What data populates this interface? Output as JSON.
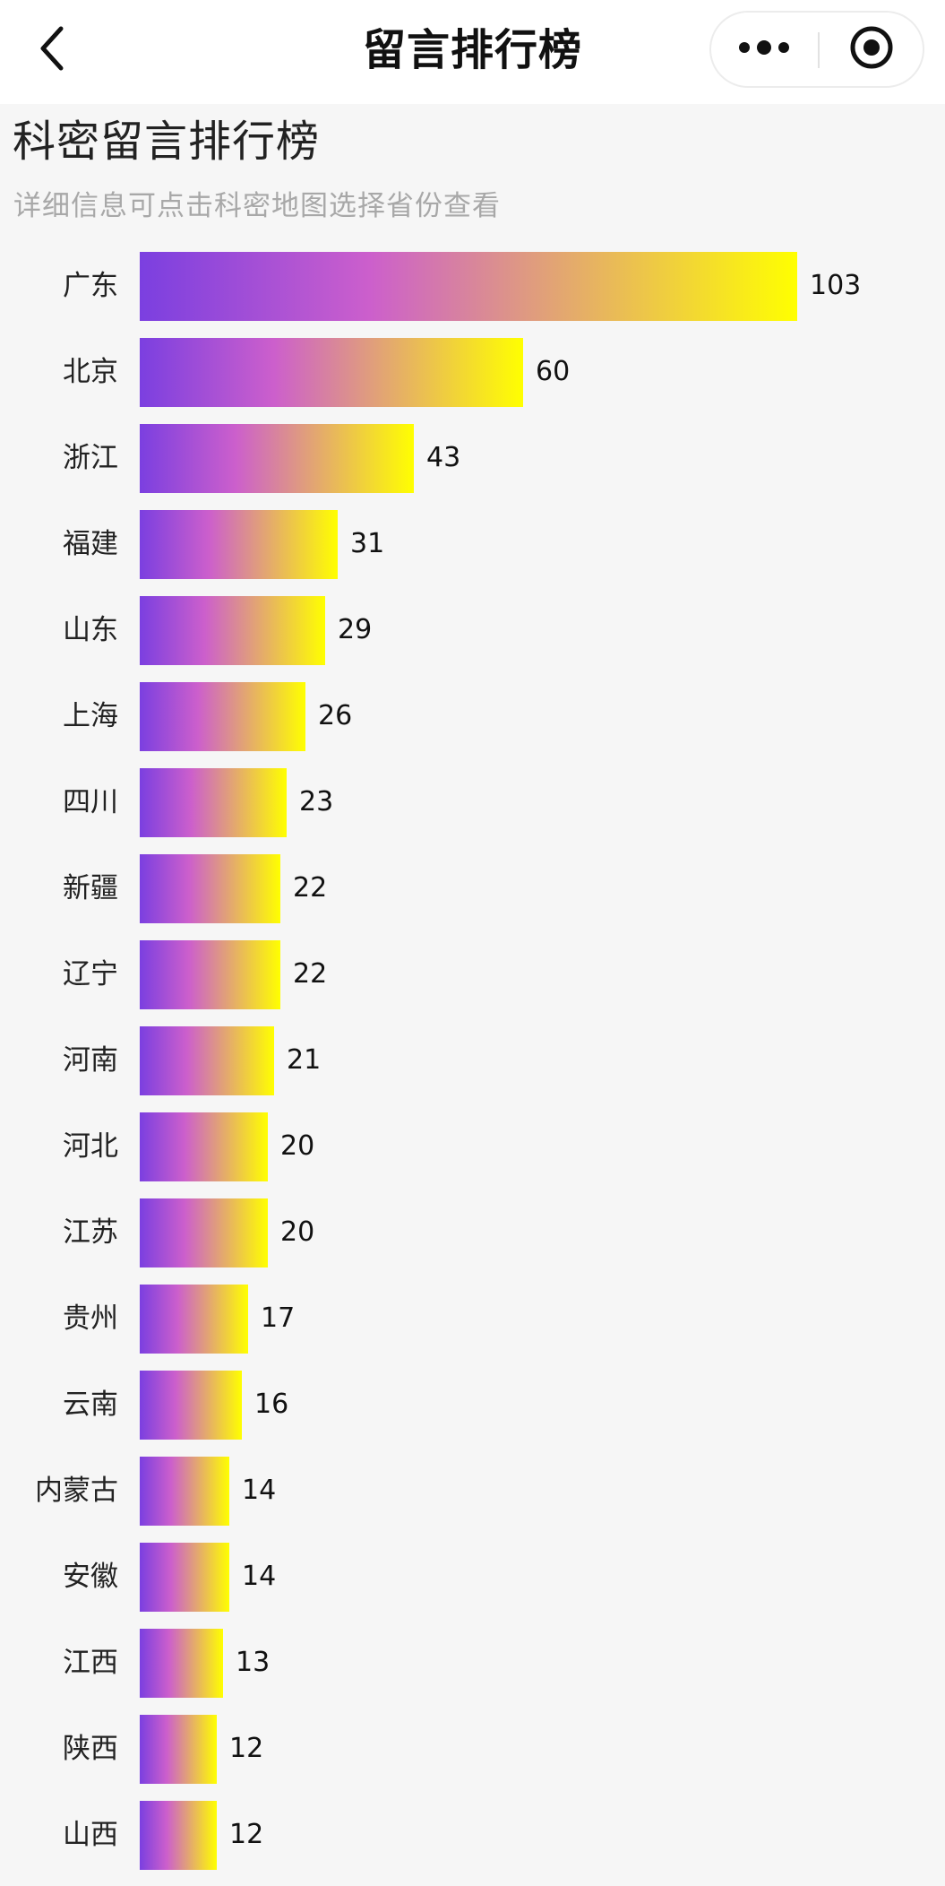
{
  "navbar": {
    "title": "留言排行榜",
    "back_icon": "chevron-left-icon",
    "more_icon": "more-dots-icon",
    "close_icon": "target-circle-icon"
  },
  "page": {
    "title": "科密留言排行榜",
    "subtitle": "详细信息可点击科密地图选择省份查看"
  },
  "colors": {
    "bar_gradient_start": "#7b3fe0",
    "bar_gradient_mid": "#cc5fcc",
    "bar_gradient_end": "#ffff00"
  },
  "chart_data": {
    "type": "bar",
    "orientation": "horizontal",
    "categories": [
      "广东",
      "北京",
      "浙江",
      "福建",
      "山东",
      "上海",
      "四川",
      "新疆",
      "辽宁",
      "河南",
      "河北",
      "江苏",
      "贵州",
      "云南",
      "内蒙古",
      "安徽",
      "江西",
      "陕西",
      "山西"
    ],
    "values": [
      103,
      60,
      43,
      31,
      29,
      26,
      23,
      22,
      22,
      21,
      20,
      20,
      17,
      16,
      14,
      14,
      13,
      12,
      12
    ],
    "title": "",
    "xlabel": "",
    "ylabel": "",
    "xlim": [
      0,
      103
    ],
    "grid": false,
    "legend": "none",
    "data_labels": true
  }
}
